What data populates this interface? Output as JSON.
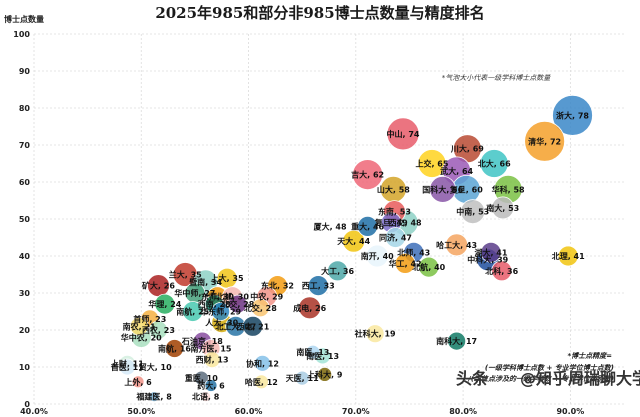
{
  "chart_data": {
    "type": "scatter",
    "title": "2025年985和部分非985博士点数量与精度排名",
    "ylabel": "博士点数量",
    "xlabel": "",
    "xlim": [
      0.4,
      0.95
    ],
    "ylim": [
      0,
      100
    ],
    "xticks": [
      "40.0%",
      "50.0%",
      "60.0%",
      "70.0%",
      "80.0%",
      "90.0%"
    ],
    "yticks": [
      "0",
      "10",
      "20",
      "30",
      "40",
      "50",
      "60",
      "70",
      "80",
      "90",
      "100"
    ],
    "grid": true,
    "note_size": "*气泡大小代表一级学科博士点数量",
    "note_precision_title": "*博士点精度=",
    "note_precision_lines": [
      "(一级学科博士点数 + 专业学位博士点数)",
      "/(学位点涉及的一级学科数 + 专业学位类别数)"
    ],
    "watermark_left": "头条",
    "watermark_right": "@知乎周瑞聊大学",
    "points": [
      {
        "name": "浙大",
        "value": 78,
        "x": 0.902,
        "y": 78,
        "r": 20,
        "color": "#3a87c8"
      },
      {
        "name": "清华",
        "value": 72,
        "x": 0.876,
        "y": 71,
        "r": 20,
        "color": "#f5a02a"
      },
      {
        "name": "中山",
        "value": 74,
        "x": 0.744,
        "y": 73,
        "r": 16,
        "color": "#e85c6a"
      },
      {
        "name": "川大",
        "value": 69,
        "x": 0.804,
        "y": 69,
        "r": 14,
        "color": "#b84a32"
      },
      {
        "name": "北大",
        "value": 66,
        "x": 0.829,
        "y": 65,
        "r": 14,
        "color": "#40c4c4"
      },
      {
        "name": "上交",
        "value": 65,
        "x": 0.771,
        "y": 65,
        "r": 14,
        "color": "#ffd21f"
      },
      {
        "name": "武大",
        "value": 64,
        "x": 0.794,
        "y": 63,
        "r": 14,
        "color": "#9b59b6"
      },
      {
        "name": "复旦",
        "value": 60,
        "x": 0.803,
        "y": 58,
        "r": 14,
        "color": "#5aa5d5"
      },
      {
        "name": "吉大",
        "value": 62,
        "x": 0.711,
        "y": 62,
        "r": 15,
        "color": "#ee6677"
      },
      {
        "name": "山大",
        "value": 58,
        "x": 0.735,
        "y": 58,
        "r": 13,
        "color": "#d4a528"
      },
      {
        "name": "国科大",
        "value": 56,
        "x": 0.781,
        "y": 58,
        "r": 13,
        "color": "#8856a7"
      },
      {
        "name": "华科",
        "value": 58,
        "x": 0.842,
        "y": 58,
        "r": 14,
        "color": "#7ac143"
      },
      {
        "name": "中南",
        "value": 53,
        "x": 0.809,
        "y": 52,
        "r": 12,
        "color": "#c0c0c0"
      },
      {
        "name": "南大",
        "value": 53,
        "x": 0.837,
        "y": 53,
        "r": 11,
        "color": "#bbbbbb"
      },
      {
        "name": "东南",
        "value": 53,
        "x": 0.736,
        "y": 52,
        "r": 11,
        "color": "#e85a5a"
      },
      {
        "name": "西交",
        "value": 48,
        "x": 0.746,
        "y": 49,
        "r": 13,
        "color": "#8ed1c6"
      },
      {
        "name": "重大",
        "value": 46,
        "x": 0.711,
        "y": 48,
        "r": 10,
        "color": "#1f6ea6"
      },
      {
        "name": "复旦",
        "value": 49,
        "x": 0.733,
        "y": 49,
        "r": 10,
        "color": "#7a6cc8"
      },
      {
        "name": "厦大",
        "value": 48,
        "x": 0.676,
        "y": 48,
        "r": 9,
        "color": "#ffffff"
      },
      {
        "name": "同济",
        "value": 47,
        "x": 0.737,
        "y": 45,
        "r": 10,
        "color": "#a5d6e6"
      },
      {
        "name": "哈工大",
        "value": 43,
        "x": 0.794,
        "y": 43,
        "r": 11,
        "color": "#f4a460"
      },
      {
        "name": "中科大",
        "value": 39,
        "x": 0.823,
        "y": 39,
        "r": 11,
        "color": "#1f4e9e"
      },
      {
        "name": "天大",
        "value": 44,
        "x": 0.698,
        "y": 44,
        "r": 11,
        "color": "#f1c40f"
      },
      {
        "name": "南开",
        "value": 40,
        "x": 0.72,
        "y": 40,
        "r": 11,
        "color": "#e8f4fb"
      },
      {
        "name": "北师",
        "value": 43,
        "x": 0.754,
        "y": 41,
        "r": 10,
        "color": "#3d6fb8"
      },
      {
        "name": "湖大",
        "value": 41,
        "x": 0.826,
        "y": 41,
        "r": 10,
        "color": "#5a3d8a"
      },
      {
        "name": "北理",
        "value": 41,
        "x": 0.898,
        "y": 40,
        "r": 10,
        "color": "#f1c40f"
      },
      {
        "name": "大工",
        "value": 36,
        "x": 0.683,
        "y": 36,
        "r": 10,
        "color": "#4ea8a8"
      },
      {
        "name": "华工",
        "value": 42,
        "x": 0.746,
        "y": 38,
        "r": 10,
        "color": "#f39c12"
      },
      {
        "name": "北航",
        "value": 40,
        "x": 0.768,
        "y": 37,
        "r": 10,
        "color": "#7ac143"
      },
      {
        "name": "北科",
        "value": 36,
        "x": 0.836,
        "y": 36,
        "r": 10,
        "color": "#e85c6a"
      },
      {
        "name": "兰大",
        "value": 35,
        "x": 0.541,
        "y": 35,
        "r": 12,
        "color": "#c0392b"
      },
      {
        "name": "暨南",
        "value": 34,
        "x": 0.56,
        "y": 33,
        "r": 12,
        "color": "#8ed1c6"
      },
      {
        "name": "上大",
        "value": 35,
        "x": 0.58,
        "y": 34,
        "r": 10,
        "color": "#f0c419"
      },
      {
        "name": "东北",
        "value": 32,
        "x": 0.627,
        "y": 32,
        "r": 10,
        "color": "#f39c12"
      },
      {
        "name": "西工",
        "value": 33,
        "x": 0.665,
        "y": 32,
        "r": 10,
        "color": "#1f6ea6"
      },
      {
        "name": "中农",
        "value": 29,
        "x": 0.617,
        "y": 29,
        "r": 10,
        "color": "#f1948a"
      },
      {
        "name": "矿大",
        "value": 26,
        "x": 0.516,
        "y": 32,
        "r": 11,
        "color": "#a22"
      },
      {
        "name": "华中师",
        "value": 27,
        "x": 0.55,
        "y": 30,
        "r": 10,
        "color": "#45a07a"
      },
      {
        "name": "东师",
        "value": 30,
        "x": 0.571,
        "y": 29,
        "r": 10,
        "color": "#f39c12"
      },
      {
        "name": "北邮",
        "value": 30,
        "x": 0.585,
        "y": 29,
        "r": 10,
        "color": "#f5b7b1"
      },
      {
        "name": "华理",
        "value": 24,
        "x": 0.522,
        "y": 27,
        "r": 10,
        "color": "#27ae60"
      },
      {
        "name": "西南",
        "value": 28,
        "x": 0.568,
        "y": 27,
        "r": 9,
        "color": "#117a65"
      },
      {
        "name": "北交",
        "value": 28,
        "x": 0.59,
        "y": 27,
        "r": 9,
        "color": "#6c3483"
      },
      {
        "name": "北交",
        "value": 28,
        "x": 0.611,
        "y": 26,
        "r": 9,
        "color": "#f8c471"
      },
      {
        "name": "成电",
        "value": 26,
        "x": 0.657,
        "y": 26,
        "r": 11,
        "color": "#a93226"
      },
      {
        "name": "首师",
        "value": 23,
        "x": 0.508,
        "y": 23,
        "r": 9,
        "color": "#f5b041"
      },
      {
        "name": "南航",
        "value": 25,
        "x": 0.548,
        "y": 25,
        "r": 10,
        "color": "#48c9b0"
      },
      {
        "name": "华东师",
        "value": 29,
        "x": 0.574,
        "y": 25,
        "r": 9,
        "color": "#2e86c1"
      },
      {
        "name": "南农",
        "value": 21,
        "x": 0.498,
        "y": 21,
        "r": 9,
        "color": "#f7dc6f"
      },
      {
        "name": "西农",
        "value": 23,
        "x": 0.516,
        "y": 20,
        "r": 9,
        "color": "#a9dfbf"
      },
      {
        "name": "人大",
        "value": 30,
        "x": 0.575,
        "y": 22,
        "r": 10,
        "color": "#d4ac0d"
      },
      {
        "name": "北工大",
        "value": 27,
        "x": 0.588,
        "y": 21,
        "r": 10,
        "color": "#2874a6"
      },
      {
        "name": "西电",
        "value": 21,
        "x": 0.604,
        "y": 21,
        "r": 10,
        "color": "#154360"
      },
      {
        "name": "华中农",
        "value": 20,
        "x": 0.5,
        "y": 18,
        "r": 10,
        "color": "#a9dfbf"
      },
      {
        "name": "石油京",
        "value": 18,
        "x": 0.557,
        "y": 17,
        "r": 9,
        "color": "#884ea0"
      },
      {
        "name": "南方医",
        "value": 15,
        "x": 0.565,
        "y": 15,
        "r": 9,
        "color": "#f5b7b1"
      },
      {
        "name": "南航",
        "value": 16,
        "x": 0.531,
        "y": 15,
        "r": 9,
        "color": "#a04000"
      },
      {
        "name": "上财",
        "value": 11,
        "x": 0.487,
        "y": 11,
        "r": 8,
        "color": "#d4efdf"
      },
      {
        "name": "首医",
        "value": 11,
        "x": 0.487,
        "y": 10,
        "r": 8,
        "color": "#d6eaf8"
      },
      {
        "name": "西财",
        "value": 13,
        "x": 0.566,
        "y": 12,
        "r": 8,
        "color": "#f9e79f"
      },
      {
        "name": "协和",
        "value": 12,
        "x": 0.613,
        "y": 11,
        "r": 8,
        "color": "#85c1e9"
      },
      {
        "name": "南医",
        "value": 13,
        "x": 0.669,
        "y": 13,
        "r": 8,
        "color": "#a3e4d7"
      },
      {
        "name": "社科大",
        "value": 19,
        "x": 0.718,
        "y": 19,
        "r": 9,
        "color": "#f9e79f"
      },
      {
        "name": "南科大",
        "value": 17,
        "x": 0.794,
        "y": 17,
        "r": 9,
        "color": "#117a65"
      },
      {
        "name": "贸大",
        "value": 10,
        "x": 0.513,
        "y": 10,
        "r": 8,
        "color": "#ffffff"
      },
      {
        "name": "上外",
        "value": 6,
        "x": 0.497,
        "y": 6,
        "r": 6,
        "color": "#f1948a"
      },
      {
        "name": "重医",
        "value": 10,
        "x": 0.556,
        "y": 7,
        "r": 7,
        "color": "#5d6d7e"
      },
      {
        "name": "药大",
        "value": 6,
        "x": 0.565,
        "y": 5,
        "r": 6,
        "color": "#2874a6"
      },
      {
        "name": "北语",
        "value": 8,
        "x": 0.56,
        "y": 2,
        "r": 5,
        "color": "#fadbd8"
      },
      {
        "name": "福建医",
        "value": 8,
        "x": 0.512,
        "y": 2,
        "r": 5,
        "color": "#7fb3d5"
      },
      {
        "name": "哈医",
        "value": 12,
        "x": 0.612,
        "y": 6,
        "r": 7,
        "color": "#f9e79f"
      },
      {
        "name": "天医",
        "value": 11,
        "x": 0.65,
        "y": 7,
        "r": 7,
        "color": "#a9cce3"
      },
      {
        "name": "上科大",
        "value": 9,
        "x": 0.671,
        "y": 8,
        "r": 7,
        "color": "#7d6608"
      },
      {
        "name": "南医",
        "value": 13,
        "x": 0.66,
        "y": 14,
        "r": 7,
        "color": "#aed6f1"
      }
    ]
  }
}
